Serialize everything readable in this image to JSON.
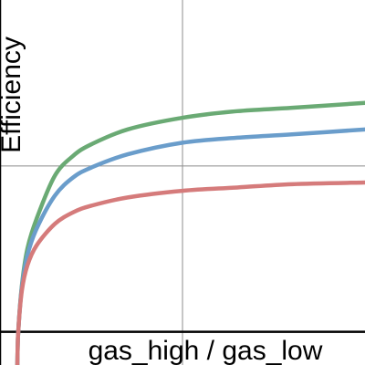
{
  "chart_data": {
    "type": "line",
    "title": "",
    "xlabel": "gas_high / gas_low",
    "ylabel": "Efficiency",
    "grid": true,
    "legend": "none",
    "series": [
      {
        "color": "#6aaa74",
        "x": [
          1,
          1.2,
          1.5,
          2,
          3,
          4,
          5,
          7,
          10,
          13,
          16,
          20
        ],
        "y": [
          0,
          0.28,
          0.5,
          0.68,
          0.94,
          1.06,
          1.13,
          1.22,
          1.29,
          1.33,
          1.35,
          1.38
        ]
      },
      {
        "color": "#6a9dcb",
        "x": [
          1,
          1.2,
          1.5,
          2,
          3,
          4,
          5,
          7,
          10,
          13,
          16,
          20
        ],
        "y": [
          0,
          0.27,
          0.46,
          0.62,
          0.82,
          0.93,
          0.99,
          1.07,
          1.14,
          1.17,
          1.19,
          1.22
        ]
      },
      {
        "color": "#d57b7b",
        "x": [
          1,
          1.2,
          1.5,
          2,
          3,
          4,
          5,
          7,
          10,
          13,
          16,
          20
        ],
        "y": [
          0,
          0.25,
          0.4,
          0.52,
          0.65,
          0.72,
          0.76,
          0.81,
          0.85,
          0.87,
          0.89,
          0.9
        ]
      }
    ],
    "xlim": [
      0,
      20
    ],
    "ylim": [
      -0.2,
      2.0
    ],
    "gridlines": {
      "x": [
        10
      ],
      "y": [
        1
      ]
    },
    "axis_color": "#000000",
    "grid_color": "#8c8c8c"
  }
}
